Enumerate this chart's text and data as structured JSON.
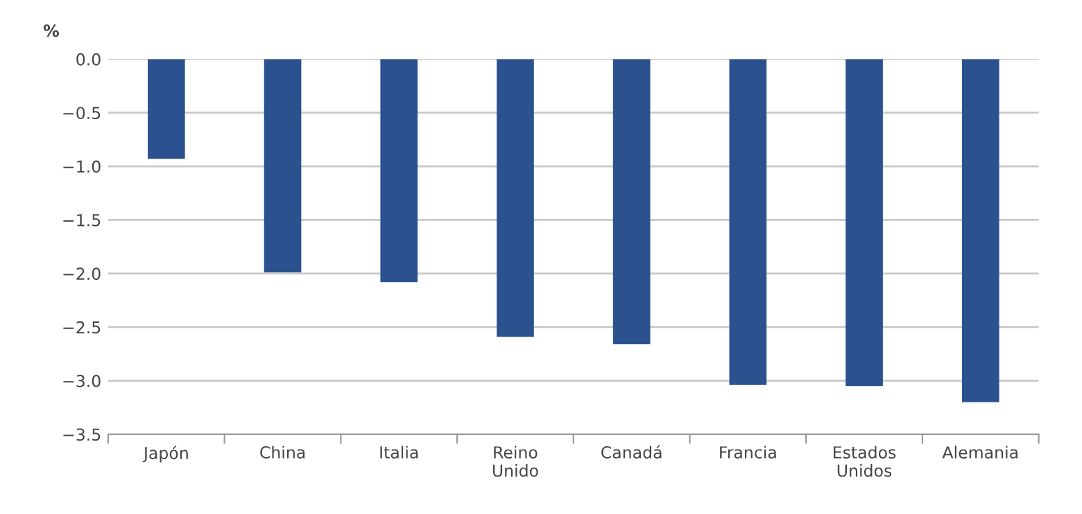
{
  "chart_data": {
    "type": "bar",
    "ylabel": "%",
    "categories": [
      "Japón",
      "China",
      "Italia",
      "Reino\nUnido",
      "Canadá",
      "Francia",
      "Estados\nUnidos",
      "Alemania"
    ],
    "values": [
      -0.93,
      -1.99,
      -2.08,
      -2.59,
      -2.66,
      -3.04,
      -3.05,
      -3.2
    ],
    "color": "#2b528f",
    "ylim": [
      -3.5,
      0.0
    ],
    "yticks": [
      {
        "value": -3.5,
        "label": "−3.5"
      },
      {
        "value": -3.0,
        "label": "−3.0"
      },
      {
        "value": -2.5,
        "label": "−2.5"
      },
      {
        "value": -2.0,
        "label": "−2.0"
      },
      {
        "value": -1.5,
        "label": "−1.5"
      },
      {
        "value": -1.0,
        "label": "−1.0"
      },
      {
        "value": -0.5,
        "label": "−0.5"
      },
      {
        "value": 0.0,
        "label": "0.0"
      }
    ],
    "grid": "y",
    "legend": false
  }
}
